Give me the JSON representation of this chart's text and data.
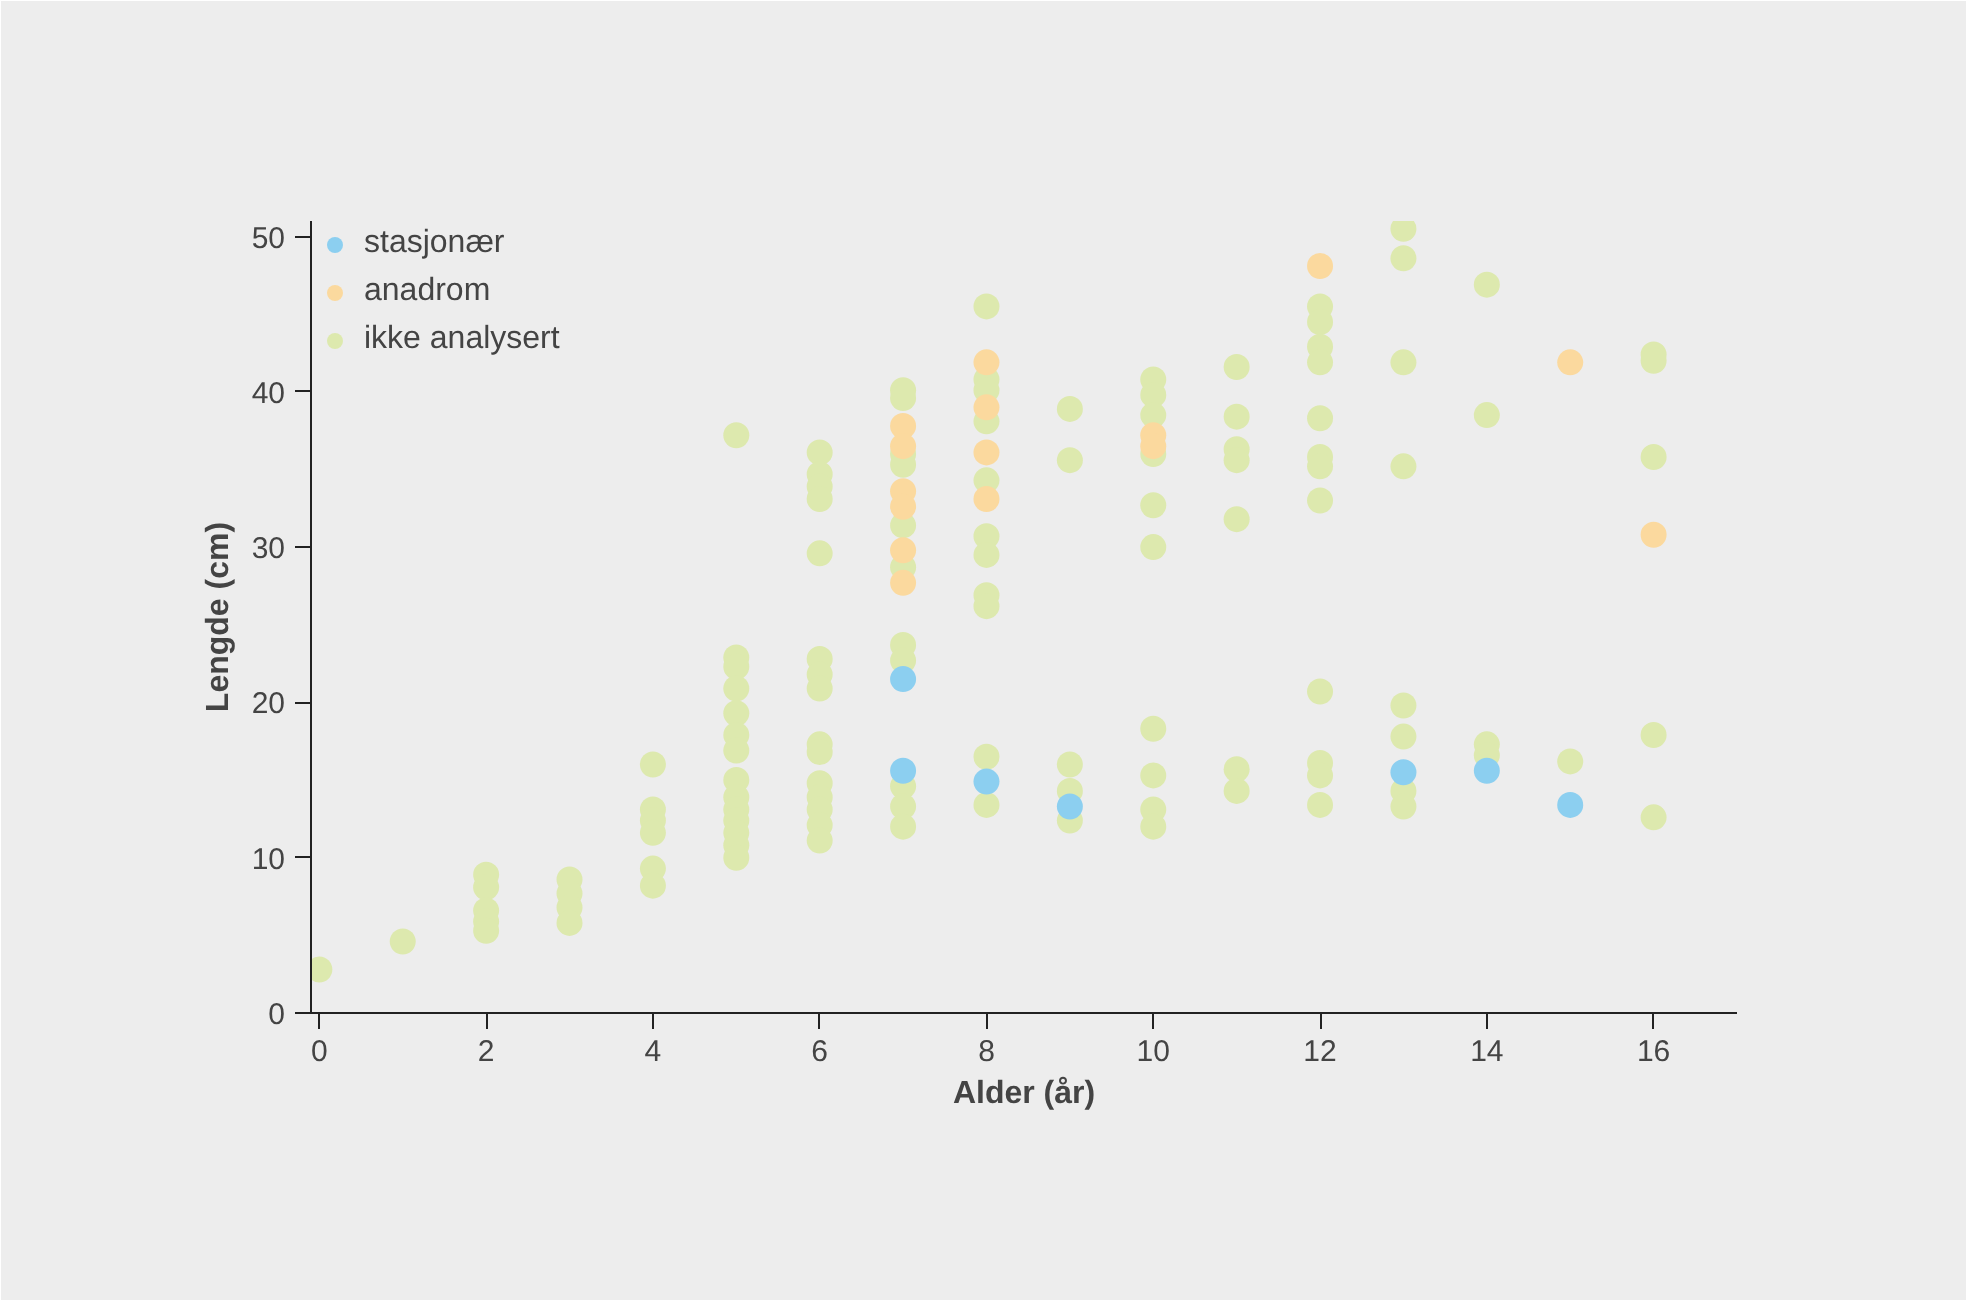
{
  "chart_data": {
    "type": "scatter",
    "xlabel": "Alder (år)",
    "ylabel": "Lengde (cm)",
    "xlim": [
      -0.1,
      17
    ],
    "ylim": [
      0,
      51
    ],
    "xticks": [
      0,
      2,
      4,
      6,
      8,
      10,
      12,
      14,
      16
    ],
    "yticks": [
      0,
      10,
      20,
      30,
      40,
      50
    ],
    "grid": false,
    "legend": "top left",
    "marker": "circle",
    "series": [
      {
        "name": "stasjonær",
        "color": "#8ccff0",
        "x": [
          7,
          7,
          8,
          9,
          13,
          14,
          15
        ],
        "values": [
          21.5,
          15.6,
          14.9,
          13.3,
          15.5,
          15.6,
          13.4
        ]
      },
      {
        "name": "anadrom",
        "color": "#fbd99e",
        "x": [
          7,
          7,
          7,
          7,
          7,
          7,
          8,
          8,
          8,
          8,
          10,
          10,
          12,
          15,
          16
        ],
        "values": [
          37.8,
          36.5,
          33.6,
          32.6,
          29.8,
          27.7,
          41.9,
          39.0,
          36.1,
          33.1,
          37.2,
          36.5,
          48.1,
          41.9,
          30.8
        ]
      },
      {
        "name": "ikke analysert",
        "color": "#dde9ae",
        "x": [
          0,
          1,
          2,
          2,
          2,
          2,
          2,
          3,
          3,
          3,
          3,
          4,
          4,
          4,
          4,
          4,
          4,
          5,
          5,
          5,
          5,
          5,
          5,
          5,
          5,
          5,
          5,
          5,
          5,
          5,
          5,
          6,
          6,
          6,
          6,
          6,
          6,
          6,
          6,
          6,
          6,
          6,
          6,
          6,
          6,
          6,
          7,
          7,
          7,
          7,
          7,
          7,
          7,
          7,
          7,
          7,
          7,
          8,
          8,
          8,
          8,
          8,
          8,
          8,
          8,
          8,
          8,
          8,
          9,
          9,
          9,
          9,
          9,
          10,
          10,
          10,
          10,
          10,
          10,
          10,
          10,
          10,
          10,
          11,
          11,
          11,
          11,
          11,
          11,
          11,
          12,
          12,
          12,
          12,
          12,
          12,
          12,
          12,
          12,
          12,
          12,
          12,
          13,
          13,
          13,
          13,
          13,
          13,
          13,
          13,
          14,
          14,
          14,
          14,
          15,
          16,
          16,
          16,
          16,
          16
        ],
        "values": [
          2.8,
          4.6,
          8.9,
          8.1,
          6.6,
          5.9,
          5.3,
          8.6,
          7.7,
          6.8,
          5.8,
          16.0,
          13.1,
          12.4,
          11.6,
          9.3,
          8.2,
          37.2,
          22.9,
          22.3,
          20.9,
          19.3,
          17.9,
          16.9,
          15.0,
          13.9,
          13.1,
          12.4,
          11.6,
          10.8,
          10.0,
          36.1,
          34.7,
          33.9,
          33.1,
          29.6,
          22.8,
          21.8,
          20.9,
          17.3,
          16.8,
          14.8,
          13.9,
          13.1,
          12.1,
          11.1,
          40.1,
          39.6,
          36.0,
          35.3,
          31.4,
          28.7,
          23.7,
          22.7,
          14.6,
          13.3,
          12.0,
          45.5,
          40.8,
          40.1,
          38.1,
          34.3,
          30.7,
          29.5,
          26.9,
          26.2,
          16.5,
          13.4,
          38.9,
          35.6,
          16.0,
          14.3,
          12.4,
          40.8,
          39.8,
          38.5,
          36.0,
          32.7,
          30.0,
          18.3,
          15.3,
          13.1,
          12.0,
          41.6,
          38.4,
          36.3,
          35.6,
          31.8,
          15.7,
          14.3,
          45.5,
          44.5,
          42.9,
          41.9,
          38.3,
          35.8,
          35.2,
          33.0,
          20.7,
          16.1,
          15.3,
          13.4,
          50.5,
          48.6,
          41.9,
          35.2,
          19.8,
          17.8,
          14.3,
          13.3,
          46.9,
          38.5,
          17.3,
          16.6,
          16.2,
          42.4,
          42.0,
          35.8,
          17.9,
          12.6
        ]
      }
    ]
  }
}
